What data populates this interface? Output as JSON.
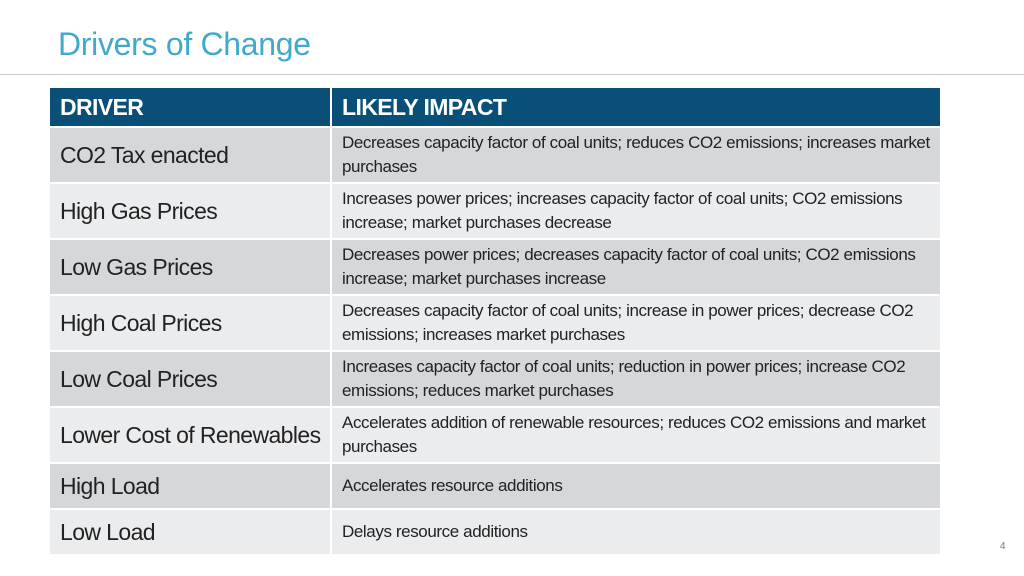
{
  "title": "Drivers of Change",
  "table": {
    "headers": {
      "driver": "DRIVER",
      "impact": "LIKELY IMPACT"
    },
    "rows": [
      {
        "driver": "CO2 Tax enacted",
        "impact": "Decreases capacity factor of coal units; reduces CO2 emissions; increases market purchases"
      },
      {
        "driver": "High Gas Prices",
        "impact": "Increases power prices; increases capacity factor of coal units; CO2 emissions increase; market purchases decrease"
      },
      {
        "driver": "Low Gas Prices",
        "impact": "Decreases power prices; decreases capacity factor of coal units; CO2 emissions increase; market purchases increase"
      },
      {
        "driver": "High Coal Prices",
        "impact": "Decreases capacity factor of coal units; increase in power prices; decrease CO2 emissions; increases market purchases"
      },
      {
        "driver": "Low Coal Prices",
        "impact": "Increases capacity factor of coal units; reduction in power prices; increase CO2 emissions; reduces market purchases"
      },
      {
        "driver": "Lower Cost of Renewables",
        "impact": "Accelerates addition of renewable resources; reduces CO2 emissions and market purchases"
      },
      {
        "driver": "High Load",
        "impact": "Accelerates resource additions"
      },
      {
        "driver": "Low Load",
        "impact": "Delays resource additions"
      }
    ]
  },
  "page_number": "4",
  "colors": {
    "title": "#41a9c9",
    "header_bg": "#094f77",
    "row_odd": "#d5d7da",
    "row_even": "#ebecee"
  }
}
